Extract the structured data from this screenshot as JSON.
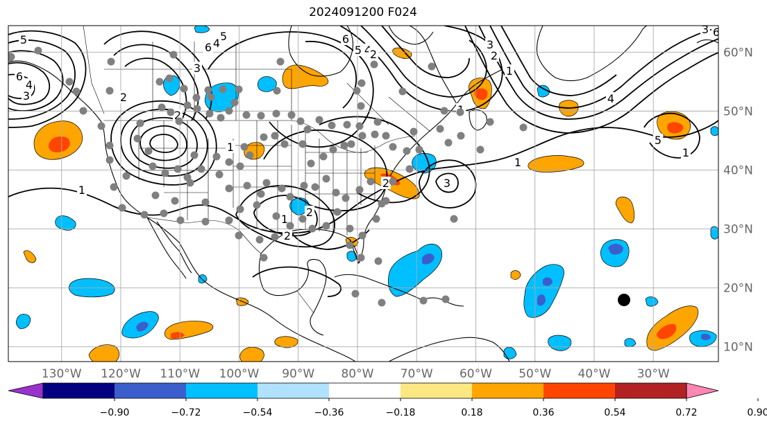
{
  "title": "2024091200 F024",
  "map": {
    "lon_ticks": [
      "130°W",
      "120°W",
      "110°W",
      "100°W",
      "90°W",
      "80°W",
      "70°W",
      "60°W",
      "50°W",
      "40°W",
      "30°W"
    ],
    "lat_ticks": [
      "60°N",
      "50°N",
      "40°N",
      "30°N",
      "20°N",
      "10°N"
    ],
    "lon_values": [
      -130,
      -120,
      -110,
      -100,
      -90,
      -80,
      -70,
      -60,
      -50,
      -40,
      -30
    ],
    "lat_values": [
      60,
      50,
      40,
      30,
      20,
      10
    ],
    "lon_range": [
      -139,
      -19
    ],
    "lat_range": [
      7.5,
      64.5
    ],
    "grid": true,
    "contour_labels": [
      "5",
      "6",
      "4",
      "3",
      "2",
      "1",
      "5",
      "6",
      "4",
      "3",
      "2",
      "6",
      "5",
      "4",
      "2",
      "1",
      "3",
      "2",
      "1",
      "3",
      "1",
      "2",
      "1",
      "4",
      "3",
      "6",
      "5",
      "1",
      "2",
      "2",
      "1"
    ],
    "marker_color": "#000000",
    "station_color": "#808080"
  },
  "colorbar": {
    "ticks": [
      "−0.90",
      "−0.72",
      "−0.54",
      "−0.36",
      "−0.18",
      "0.18",
      "0.36",
      "0.54",
      "0.72",
      "0.90"
    ],
    "colors": [
      "#9932cc",
      "#000080",
      "#3a5fcd",
      "#00bfff",
      "#b0e2ff",
      "#ffffff",
      "#fce883",
      "#ffa500",
      "#ff4500",
      "#b22222",
      "#ff86b4"
    ],
    "orientation": "horizontal"
  },
  "fill_colors": {
    "neg_light": "#b0e2ff",
    "neg_mid": "#00bfff",
    "neg_strong": "#3a5fcd",
    "pos_light": "#fce883",
    "pos_mid": "#ffa500",
    "pos_strong": "#ff4500"
  }
}
